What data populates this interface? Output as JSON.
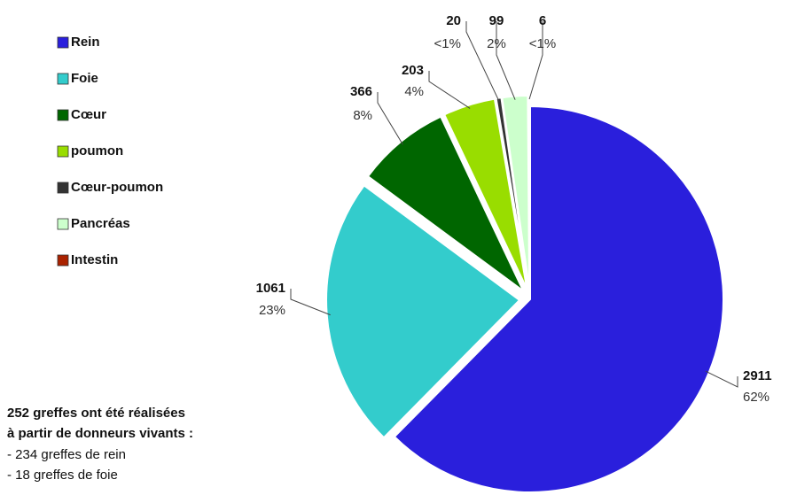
{
  "chart_data": {
    "type": "pie",
    "categories": [
      "Rein",
      "Foie",
      "Cœur",
      "poumon",
      "Cœur-poumon",
      "Pancréas",
      "Intestin"
    ],
    "values": [
      2911,
      1061,
      366,
      203,
      20,
      99,
      6
    ],
    "percent_labels": [
      "62%",
      "23%",
      "8%",
      "4%",
      "<1%",
      "2%",
      "<1%"
    ],
    "colors": [
      "#2a1fdc",
      "#33cccc",
      "#006600",
      "#99dd00",
      "#333333",
      "#ccffcc",
      "#aa2200"
    ],
    "annotation": [
      "252 greffes ont été réalisées",
      "à partir de donneurs vivants :",
      "- 234 greffes de rein",
      "- 18 greffes de foie"
    ]
  }
}
